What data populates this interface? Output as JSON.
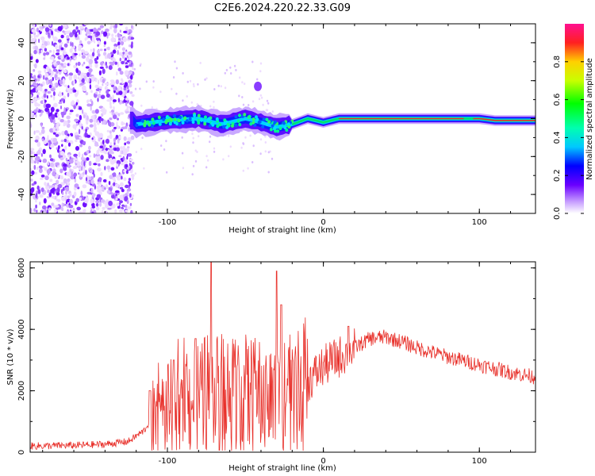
{
  "title": "C2E6.2024.220.22.33.G09",
  "chart_data": [
    {
      "type": "heatmap",
      "xlabel": "Height of straight line (km)",
      "ylabel": "Frequency (Hz)",
      "xlim": [
        -188,
        136
      ],
      "ylim": [
        -50,
        50
      ],
      "xticks": [
        "-100",
        "0",
        "100"
      ],
      "yticks": [
        "-40",
        "-20",
        "0",
        "20",
        "40"
      ],
      "colorbar": {
        "label": "Normalized spectral amplitude",
        "range": [
          0,
          1
        ],
        "ticks": [
          "0.0",
          "0.2",
          "0.4",
          "0.6",
          "0.8"
        ]
      },
      "ridge": [
        {
          "x": -120,
          "y": -3
        },
        {
          "x": -100,
          "y": -1
        },
        {
          "x": -80,
          "y": 0
        },
        {
          "x": -65,
          "y": -3
        },
        {
          "x": -50,
          "y": 0
        },
        {
          "x": -40,
          "y": -2
        },
        {
          "x": -30,
          "y": -4.5
        },
        {
          "x": -20,
          "y": -3
        },
        {
          "x": -10,
          "y": 0
        },
        {
          "x": 0,
          "y": -2
        },
        {
          "x": 10,
          "y": 0
        },
        {
          "x": 90,
          "y": 0
        },
        {
          "x": 100,
          "y": 0
        },
        {
          "x": 110,
          "y": -1
        },
        {
          "x": 136,
          "y": -1
        }
      ],
      "grid": false
    },
    {
      "type": "line",
      "xlabel": "Height of straight line (km)",
      "ylabel": "SNR (10 * v/v)",
      "xlim": [
        -188,
        136
      ],
      "ylim": [
        0,
        6200
      ],
      "xticks": [
        "-100",
        "0",
        "100"
      ],
      "yticks": [
        "0",
        "2000",
        "4000",
        "6000"
      ],
      "series": [
        {
          "color": "#e8302a",
          "points": [
            {
              "x": -188,
              "y": 200
            },
            {
              "x": -160,
              "y": 220
            },
            {
              "x": -140,
              "y": 260
            },
            {
              "x": -125,
              "y": 350
            },
            {
              "x": -115,
              "y": 700
            },
            {
              "x": -110,
              "y": 1100
            },
            {
              "x": -100,
              "y": 1400
            },
            {
              "x": -90,
              "y": 1600
            },
            {
              "x": -80,
              "y": 1800
            },
            {
              "x": -70,
              "y": 1900
            },
            {
              "x": -60,
              "y": 1900
            },
            {
              "x": -50,
              "y": 1850
            },
            {
              "x": -40,
              "y": 1800
            },
            {
              "x": -30,
              "y": 1700
            },
            {
              "x": -20,
              "y": 1800
            },
            {
              "x": -10,
              "y": 2300
            },
            {
              "x": 0,
              "y": 2800
            },
            {
              "x": 10,
              "y": 3100
            },
            {
              "x": 20,
              "y": 3400
            },
            {
              "x": 30,
              "y": 3700
            },
            {
              "x": 40,
              "y": 3750
            },
            {
              "x": 50,
              "y": 3600
            },
            {
              "x": 60,
              "y": 3400
            },
            {
              "x": 80,
              "y": 3100
            },
            {
              "x": 100,
              "y": 2850
            },
            {
              "x": 120,
              "y": 2600
            },
            {
              "x": 136,
              "y": 2450
            }
          ]
        }
      ],
      "peaks": [
        {
          "x": -72,
          "y": 6200
        },
        {
          "x": -30,
          "y": 5900
        },
        {
          "x": -82,
          "y": 3700
        },
        {
          "x": -96,
          "y": 3000
        },
        {
          "x": -111,
          "y": 2000
        },
        {
          "x": -27,
          "y": 4800
        },
        {
          "x": 16,
          "y": 4100
        }
      ],
      "grid": false
    }
  ]
}
